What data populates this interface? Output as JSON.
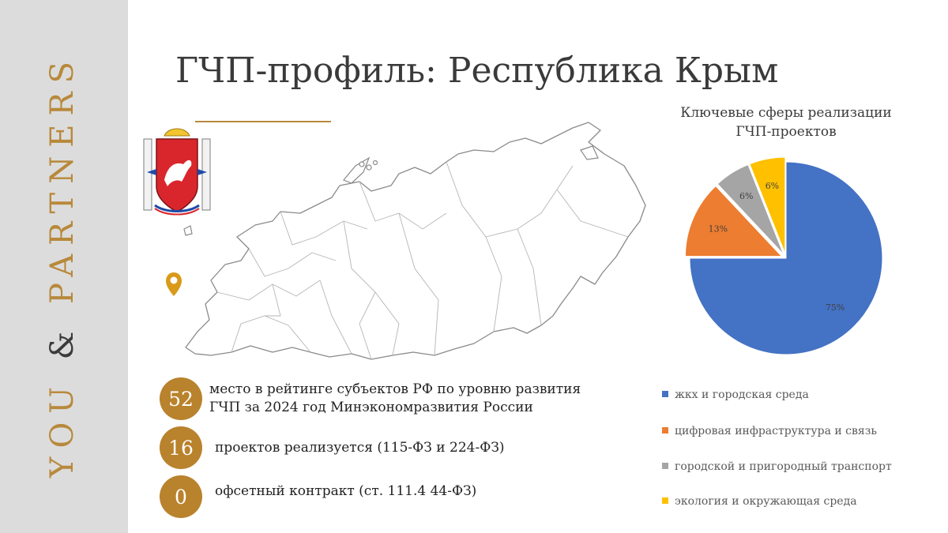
{
  "brand": {
    "part1": "YOU",
    "amp": "&",
    "part2": "PARTNERS"
  },
  "title": "ГЧП-профиль: Республика Крым",
  "stats": [
    {
      "value": "52",
      "line1": "место в рейтинге субъектов РФ по уровню развития",
      "line2": "ГЧП за 2024 год Минэкономразвития России"
    },
    {
      "value": "16",
      "line1": "проектов реализуется (115-ФЗ и 224-ФЗ)"
    },
    {
      "value": "0",
      "line1": "офсетный контракт (ст. 111.4 44-ФЗ)"
    }
  ],
  "chart_data": {
    "type": "pie",
    "title_line1": "Ключевые сферы реализации",
    "title_line2": "ГЧП-проектов",
    "slices": [
      {
        "name": "жкх и городская среда",
        "value": 75,
        "label": "75%",
        "color": "#4472C4"
      },
      {
        "name": "цифровая инфраструктура и связь",
        "value": 13,
        "label": "13%",
        "color": "#ED7D31"
      },
      {
        "name": "городской и пригородный транспорт",
        "value": 6,
        "label": "6%",
        "color": "#A5A5A5"
      },
      {
        "name": "экология и окружающая среда",
        "value": 6,
        "label": "6%",
        "color": "#FFC000"
      }
    ],
    "legend_position": "bottom"
  },
  "colors": {
    "accent": "#b9822c",
    "sidebar": "#dcdcdc",
    "emblem_red": "#d9262c"
  },
  "icons": {
    "location": "location-pin-icon",
    "emblem": "crimea-coat-of-arms"
  }
}
